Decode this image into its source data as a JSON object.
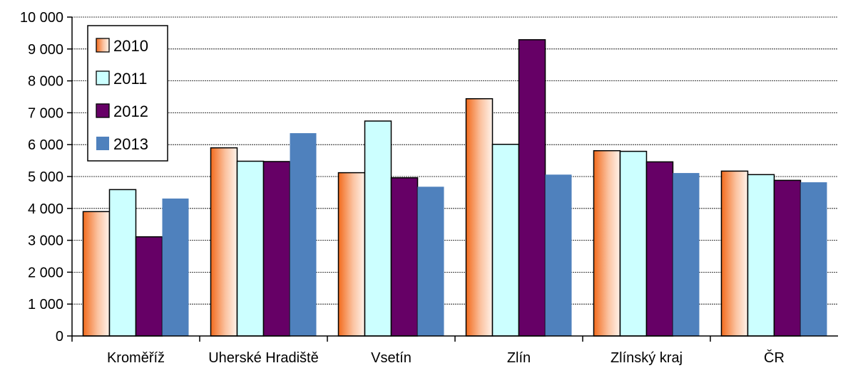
{
  "chart_data": {
    "type": "bar",
    "categories": [
      "Kroměříž",
      "Uherské Hradiště",
      "Vsetín",
      "Zlín",
      "Zlínský kraj",
      "ČR"
    ],
    "series": [
      {
        "name": "2010",
        "values": [
          3900,
          5900,
          5120,
          7440,
          5810,
          5170
        ]
      },
      {
        "name": "2011",
        "values": [
          4590,
          5480,
          6740,
          6010,
          5790,
          5060
        ]
      },
      {
        "name": "2012",
        "values": [
          3110,
          5470,
          4960,
          9290,
          5460,
          4880
        ]
      },
      {
        "name": "2013",
        "values": [
          4310,
          6360,
          4680,
          5060,
          5110,
          4820
        ]
      }
    ],
    "ylim": [
      0,
      10000
    ],
    "yticks": [
      0,
      1000,
      2000,
      3000,
      4000,
      5000,
      6000,
      7000,
      8000,
      9000,
      10000
    ],
    "ytick_labels": [
      "0",
      "1 000",
      "2 000",
      "3 000",
      "4 000",
      "5 000",
      "6 000",
      "7 000",
      "8 000",
      "9 000",
      "10 000"
    ],
    "grid": true,
    "legend": "top-left",
    "colors": {
      "2010": "#f79660",
      "2011": "#ccffff",
      "2012": "#660066",
      "2013": "#4f81bd"
    }
  }
}
